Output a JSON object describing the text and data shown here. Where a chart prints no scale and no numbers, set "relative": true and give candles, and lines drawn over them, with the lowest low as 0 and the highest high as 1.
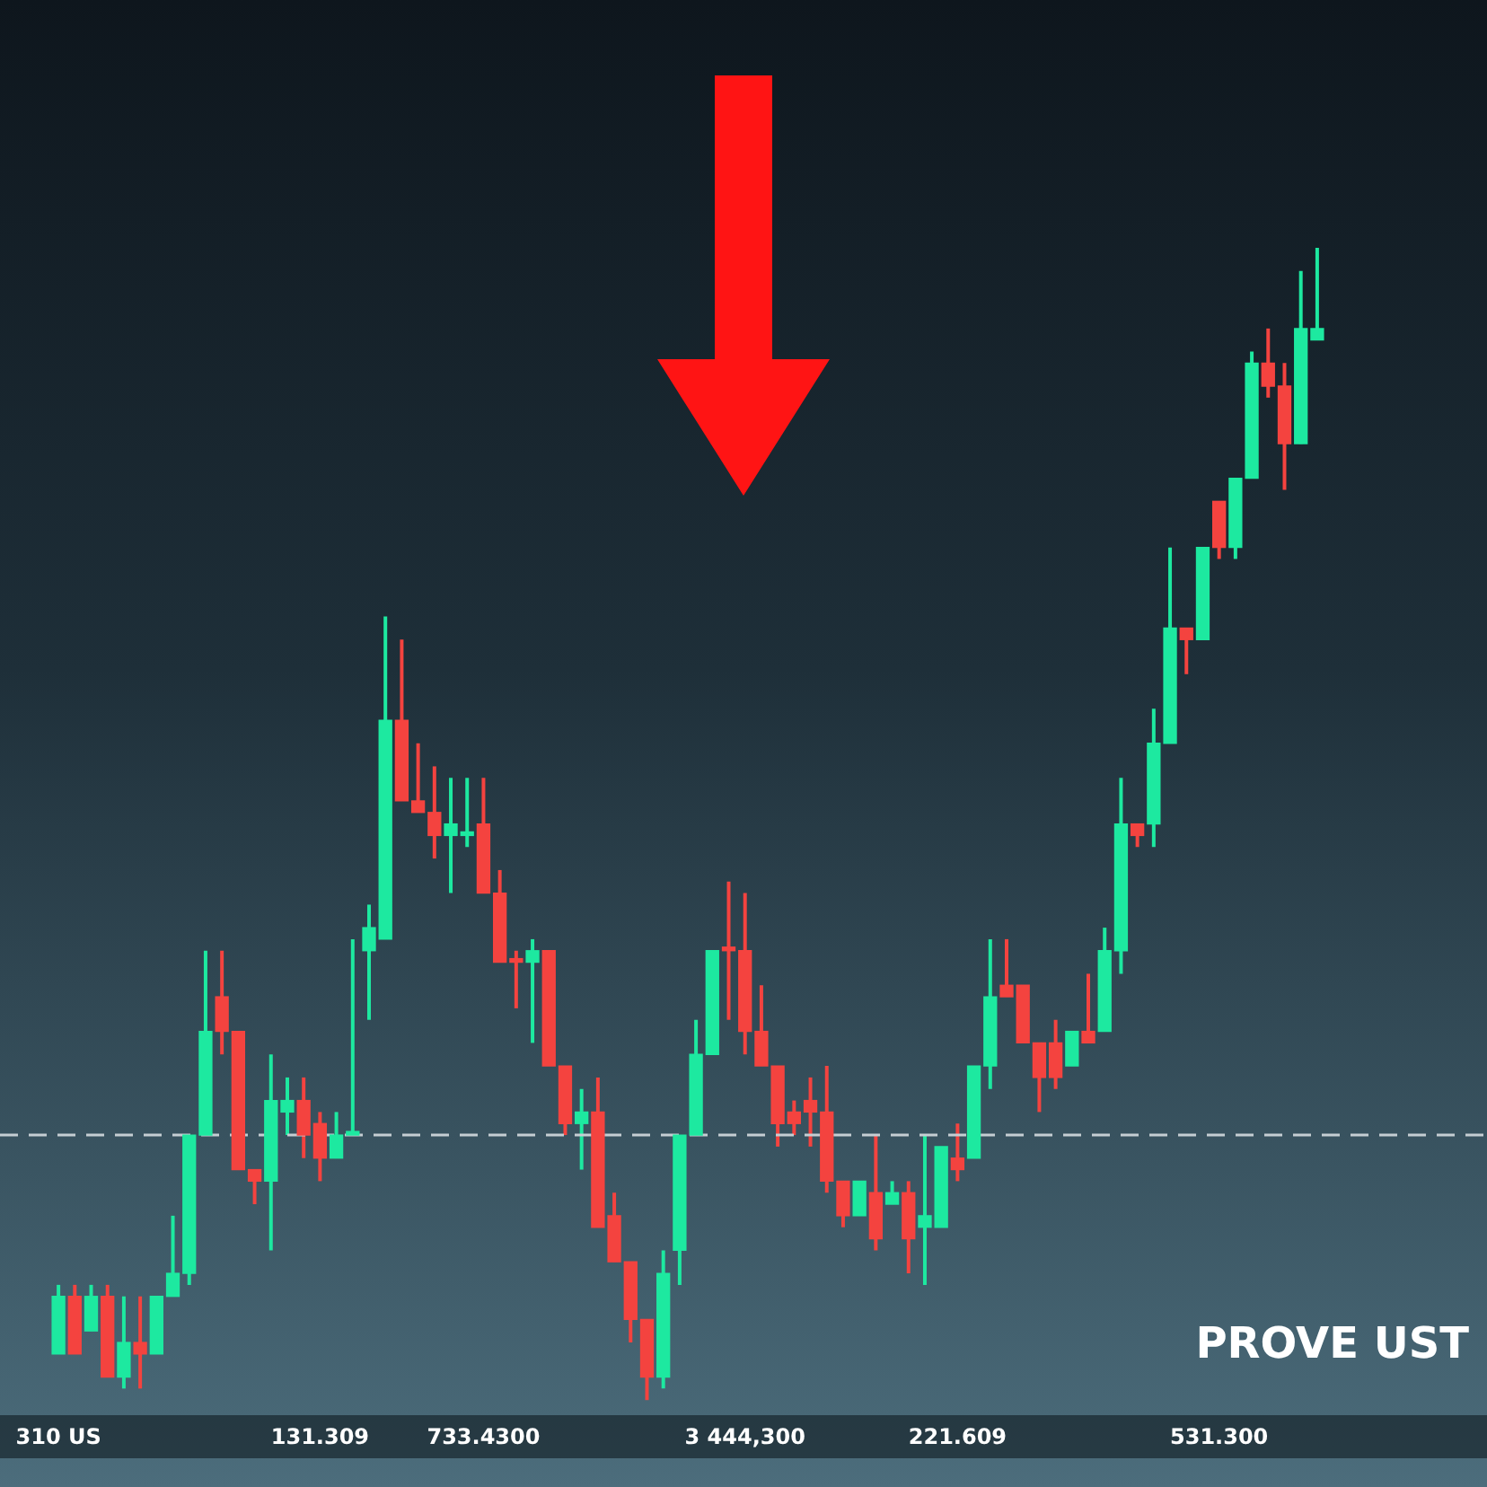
{
  "chart_data": {
    "type": "candlestick",
    "relative": true,
    "categories": [
      "310 US",
      null,
      null,
      null,
      null,
      null,
      null,
      null,
      null,
      null,
      null,
      null,
      null,
      null,
      null,
      null,
      "131.309",
      null,
      null,
      null,
      null,
      null,
      null,
      null,
      null,
      null,
      "733.4300",
      null,
      null,
      null,
      null,
      null,
      null,
      null,
      null,
      null,
      null,
      null,
      null,
      null,
      null,
      null,
      "3 444,300",
      null,
      null,
      null,
      null,
      null,
      null,
      null,
      null,
      null,
      null,
      null,
      null,
      "221.609",
      null,
      null,
      null,
      null,
      null,
      null,
      null,
      null,
      null,
      null,
      null,
      null,
      null,
      null,
      null,
      "531.300",
      null,
      null,
      null,
      null,
      null,
      null
    ],
    "ohlc": [
      [
        0.04,
        0.1,
        0.04,
        0.09
      ],
      [
        0.09,
        0.1,
        0.04,
        0.04
      ],
      [
        0.06,
        0.1,
        0.06,
        0.09
      ],
      [
        0.09,
        0.1,
        0.02,
        0.02
      ],
      [
        0.02,
        0.09,
        0.01,
        0.05
      ],
      [
        0.05,
        0.09,
        0.01,
        0.04
      ],
      [
        0.04,
        0.09,
        0.04,
        0.09
      ],
      [
        0.09,
        0.16,
        0.09,
        0.11
      ],
      [
        0.11,
        0.23,
        0.1,
        0.23
      ],
      [
        0.23,
        0.39,
        0.23,
        0.32
      ],
      [
        0.35,
        0.39,
        0.3,
        0.32
      ],
      [
        0.32,
        0.32,
        0.2,
        0.2
      ],
      [
        0.2,
        0.2,
        0.17,
        0.19
      ],
      [
        0.19,
        0.3,
        0.13,
        0.26
      ],
      [
        0.25,
        0.28,
        0.23,
        0.26
      ],
      [
        0.26,
        0.28,
        0.21,
        0.23
      ],
      [
        0.24,
        0.25,
        0.19,
        0.21
      ],
      [
        0.21,
        0.25,
        0.21,
        0.23
      ],
      [
        0.23,
        0.4,
        0.23,
        0.23
      ],
      [
        0.39,
        0.43,
        0.33,
        0.41
      ],
      [
        0.4,
        0.68,
        0.4,
        0.59
      ],
      [
        0.59,
        0.66,
        0.52,
        0.52
      ],
      [
        0.52,
        0.57,
        0.51,
        0.51
      ],
      [
        0.51,
        0.55,
        0.47,
        0.49
      ],
      [
        0.49,
        0.54,
        0.44,
        0.5
      ],
      [
        0.49,
        0.54,
        0.48,
        0.49
      ],
      [
        0.5,
        0.54,
        0.44,
        0.44
      ],
      [
        0.44,
        0.46,
        0.38,
        0.38
      ],
      [
        0.38,
        0.39,
        0.34,
        0.38
      ],
      [
        0.38,
        0.4,
        0.31,
        0.39
      ],
      [
        0.39,
        0.39,
        0.29,
        0.29
      ],
      [
        0.29,
        0.29,
        0.23,
        0.24
      ],
      [
        0.24,
        0.27,
        0.2,
        0.25
      ],
      [
        0.25,
        0.28,
        0.15,
        0.15
      ],
      [
        0.16,
        0.18,
        0.12,
        0.12
      ],
      [
        0.12,
        0.12,
        0.05,
        0.07
      ],
      [
        0.07,
        0.07,
        0,
        0.02
      ],
      [
        0.02,
        0.13,
        0.01,
        0.11
      ],
      [
        0.13,
        0.23,
        0.1,
        0.23
      ],
      [
        0.23,
        0.33,
        0.23,
        0.3
      ],
      [
        0.3,
        0.39,
        0.3,
        0.39
      ],
      [
        0.39,
        0.45,
        0.33,
        0.39
      ],
      [
        0.39,
        0.44,
        0.3,
        0.32
      ],
      [
        0.32,
        0.36,
        0.29,
        0.29
      ],
      [
        0.29,
        0.29,
        0.22,
        0.24
      ],
      [
        0.25,
        0.26,
        0.23,
        0.24
      ],
      [
        0.26,
        0.28,
        0.22,
        0.25
      ],
      [
        0.25,
        0.29,
        0.18,
        0.19
      ],
      [
        0.19,
        0.19,
        0.15,
        0.16
      ],
      [
        0.16,
        0.19,
        0.16,
        0.19
      ],
      [
        0.18,
        0.23,
        0.13,
        0.14
      ],
      [
        0.17,
        0.19,
        0.17,
        0.18
      ],
      [
        0.18,
        0.19,
        0.11,
        0.14
      ],
      [
        0.15,
        0.23,
        0.1,
        0.16
      ],
      [
        0.15,
        0.22,
        0.15,
        0.22
      ],
      [
        0.21,
        0.24,
        0.19,
        0.2
      ],
      [
        0.21,
        0.29,
        0.21,
        0.29
      ],
      [
        0.29,
        0.4,
        0.27,
        0.35
      ],
      [
        0.36,
        0.4,
        0.35,
        0.35
      ],
      [
        0.36,
        0.36,
        0.31,
        0.31
      ],
      [
        0.31,
        0.31,
        0.25,
        0.28
      ],
      [
        0.31,
        0.33,
        0.27,
        0.28
      ],
      [
        0.29,
        0.32,
        0.29,
        0.32
      ],
      [
        0.32,
        0.37,
        0.31,
        0.31
      ],
      [
        0.32,
        0.41,
        0.32,
        0.39
      ],
      [
        0.39,
        0.54,
        0.37,
        0.5
      ],
      [
        0.5,
        0.5,
        0.48,
        0.49
      ],
      [
        0.5,
        0.6,
        0.48,
        0.57
      ],
      [
        0.57,
        0.74,
        0.57,
        0.67
      ],
      [
        0.67,
        0.67,
        0.63,
        0.66
      ],
      [
        0.66,
        0.74,
        0.66,
        0.74
      ],
      [
        0.78,
        0.78,
        0.73,
        0.74
      ],
      [
        0.74,
        0.8,
        0.73,
        0.8
      ],
      [
        0.8,
        0.91,
        0.8,
        0.9
      ],
      [
        0.9,
        0.93,
        0.87,
        0.88
      ],
      [
        0.88,
        0.9,
        0.79,
        0.83
      ],
      [
        0.83,
        0.98,
        0.83,
        0.93
      ],
      [
        0.92,
        1,
        0.92,
        0.93
      ]
    ],
    "colors": [
      "#1de9a0",
      "#f4433f",
      "#1de9a0",
      "#f4433f",
      "#1de9a0",
      "#f4433f",
      "#1de9a0",
      "#1de9a0",
      "#1de9a0",
      "#1de9a0",
      "#f4433f",
      "#f4433f",
      "#f4433f",
      "#1de9a0",
      "#1de9a0",
      "#f4433f",
      "#f4433f",
      "#1de9a0",
      "#1de9a0",
      "#1de9a0",
      "#1de9a0",
      "#f4433f",
      "#f4433f",
      "#f4433f",
      "#1de9a0",
      "#1de9a0",
      "#f4433f",
      "#f4433f",
      "#f4433f",
      "#1de9a0",
      "#f4433f",
      "#f4433f",
      "#1de9a0",
      "#f4433f",
      "#f4433f",
      "#f4433f",
      "#f4433f",
      "#1de9a0",
      "#1de9a0",
      "#1de9a0",
      "#1de9a0",
      "#f4433f",
      "#f4433f",
      "#f4433f",
      "#f4433f",
      "#f4433f",
      "#f4433f",
      "#f4433f",
      "#f4433f",
      "#1de9a0",
      "#f4433f",
      "#1de9a0",
      "#f4433f",
      "#1de9a0",
      "#1de9a0",
      "#f4433f",
      "#1de9a0",
      "#1de9a0",
      "#f4433f",
      "#f4433f",
      "#f4433f",
      "#f4433f",
      "#1de9a0",
      "#f4433f",
      "#1de9a0",
      "#1de9a0",
      "#f4433f",
      "#1de9a0",
      "#1de9a0",
      "#f4433f",
      "#1de9a0",
      "#f4433f",
      "#1de9a0",
      "#1de9a0",
      "#f4433f",
      "#f4433f",
      "#1de9a0",
      "#1de9a0"
    ],
    "ref_lines": [
      {
        "axis": "y",
        "value": 0.23,
        "color": "#c5ced3",
        "line_style": "dashed"
      }
    ],
    "annotations": [
      "PROVE UST"
    ],
    "grid": false,
    "legend": false
  }
}
